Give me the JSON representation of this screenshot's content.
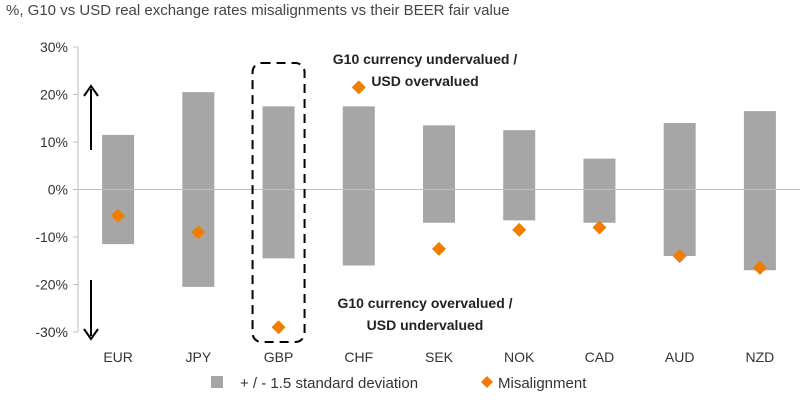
{
  "chart_data": {
    "type": "bar",
    "title": "%, G10 vs USD real exchange rates misalignments vs their BEER fair value",
    "categories": [
      "EUR",
      "JPY",
      "GBP",
      "CHF",
      "SEK",
      "NOK",
      "CAD",
      "AUD",
      "NZD"
    ],
    "ylim": [
      -30,
      30
    ],
    "yticks": [
      30,
      20,
      10,
      0,
      -10,
      -20,
      -30
    ],
    "ytick_labels": [
      "30%",
      "20%",
      "10%",
      "0%",
      "-10%",
      "-20%",
      "-30%"
    ],
    "grid": false,
    "series": [
      {
        "name": "+ / - 1.5 standard deviation",
        "kind": "range-bar",
        "color": "#a6a6a6",
        "upper": [
          11.5,
          20.5,
          17.5,
          17.5,
          13.5,
          12.5,
          6.5,
          14.0,
          16.5
        ],
        "lower": [
          -11.5,
          -20.5,
          -14.5,
          -16.0,
          -7.0,
          -6.5,
          -7.0,
          -14.0,
          -17.0
        ]
      },
      {
        "name": "Misalignment",
        "kind": "marker",
        "color": "#f07d00",
        "values": [
          -5.5,
          -9.0,
          -29.0,
          21.5,
          -12.5,
          -8.5,
          -8.0,
          -14.0,
          -16.5
        ]
      }
    ],
    "highlight_category": "GBP",
    "annotations": [
      {
        "lines": [
          "G10 currency undervalued /",
          "USD overvalued"
        ],
        "direction": "up"
      },
      {
        "lines": [
          "G10 currency overvalued /",
          "USD undervalued"
        ],
        "direction": "down"
      }
    ],
    "legend_position": "bottom"
  }
}
